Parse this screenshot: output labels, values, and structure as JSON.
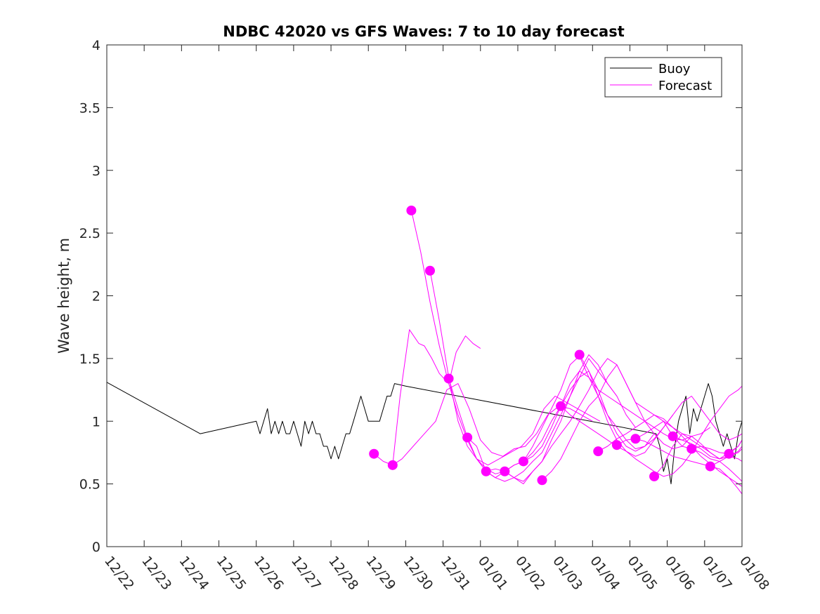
{
  "chart_data": {
    "type": "line",
    "title": "NDBC 42020 vs GFS Waves: 7 to 10 day forecast",
    "xlabel": "",
    "ylabel": "Wave height, m",
    "xlim": [
      0,
      17
    ],
    "ylim": [
      0,
      4
    ],
    "x_tick_labels": [
      "12/22",
      "12/23",
      "12/24",
      "12/25",
      "12/26",
      "12/27",
      "12/28",
      "12/29",
      "12/30",
      "12/31",
      "01/01",
      "01/02",
      "01/03",
      "01/04",
      "01/05",
      "01/06",
      "01/07",
      "01/08"
    ],
    "y_ticks": [
      0,
      0.5,
      1,
      1.5,
      2,
      2.5,
      3,
      3.5,
      4
    ],
    "y_tick_labels": [
      "0",
      "0.5",
      "1",
      "1.5",
      "2",
      "2.5",
      "3",
      "3.5",
      "4"
    ],
    "legend": {
      "placement": "top-right",
      "entries": [
        {
          "label": "Buoy",
          "color": "#000000"
        },
        {
          "label": "Forecast",
          "color": "#ff00ff"
        }
      ]
    },
    "series": [
      {
        "name": "Buoy",
        "color": "#000000",
        "x": [
          0,
          2.5,
          4.0,
          4.1,
          4.2,
          4.3,
          4.4,
          4.5,
          4.6,
          4.7,
          4.8,
          4.9,
          5.0,
          5.1,
          5.2,
          5.3,
          5.4,
          5.5,
          5.6,
          5.7,
          5.8,
          5.9,
          6.0,
          6.1,
          6.2,
          6.3,
          6.4,
          6.5,
          6.6,
          6.7,
          6.8,
          6.9,
          7.0,
          7.1,
          7.2,
          7.3,
          7.4,
          7.5,
          7.6,
          7.7,
          8.0,
          14.7,
          14.8,
          14.9,
          15.0,
          15.1,
          15.2,
          15.3,
          15.4,
          15.5,
          15.6,
          15.7,
          15.8,
          15.9,
          16.0,
          16.1,
          16.2,
          16.3,
          16.4,
          16.5,
          16.6,
          16.7,
          16.8,
          16.9,
          17.0
        ],
        "values": [
          1.31,
          0.9,
          1.0,
          0.9,
          1.0,
          1.1,
          0.9,
          1.0,
          0.9,
          1.0,
          0.9,
          0.9,
          1.0,
          0.9,
          0.8,
          1.0,
          0.9,
          1.0,
          0.9,
          0.9,
          0.8,
          0.8,
          0.7,
          0.8,
          0.7,
          0.8,
          0.9,
          0.9,
          1.0,
          1.1,
          1.2,
          1.1,
          1.0,
          1.0,
          1.0,
          1.0,
          1.1,
          1.2,
          1.2,
          1.3,
          1.28,
          0.9,
          0.8,
          0.6,
          0.7,
          0.5,
          0.8,
          1.0,
          1.1,
          1.2,
          0.9,
          1.1,
          1.0,
          1.1,
          1.2,
          1.3,
          1.2,
          1.0,
          0.9,
          0.8,
          0.9,
          0.8,
          0.7,
          0.9,
          1.0
        ]
      },
      {
        "name": "Forecast run 1",
        "color": "#ff00ff",
        "x": [
          7.15,
          7.4,
          7.65,
          7.85,
          8.1,
          8.35,
          8.5,
          8.7,
          8.9,
          9.15,
          9.35,
          9.6,
          9.8,
          10.0
        ],
        "values": [
          0.74,
          0.68,
          0.65,
          1.2,
          1.73,
          1.62,
          1.6,
          1.5,
          1.38,
          1.3,
          1.55,
          1.68,
          1.62,
          1.58
        ]
      },
      {
        "name": "Forecast run 2",
        "color": "#ff00ff",
        "x": [
          7.65,
          7.9,
          8.2,
          8.5,
          8.8,
          9.1,
          9.4,
          9.7,
          10.0,
          10.3,
          10.6,
          10.9,
          11.2,
          11.5,
          11.8,
          12.1,
          12.4,
          12.7,
          13.0
        ],
        "values": [
          0.65,
          0.7,
          0.8,
          0.9,
          1.0,
          1.25,
          1.3,
          1.1,
          0.85,
          0.75,
          0.72,
          0.78,
          0.8,
          0.9,
          1.05,
          1.12,
          1.1,
          1.05,
          1.0
        ]
      },
      {
        "name": "Forecast run 3",
        "color": "#ff00ff",
        "x": [
          8.15,
          8.4,
          8.65,
          8.9,
          9.15,
          9.4,
          9.65,
          9.9,
          10.2,
          10.5,
          10.8,
          11.1,
          11.4,
          11.7,
          12.0,
          12.3,
          12.6,
          12.9,
          13.2
        ],
        "values": [
          2.68,
          2.35,
          1.95,
          1.6,
          1.3,
          1.05,
          0.85,
          0.7,
          0.65,
          0.7,
          0.75,
          0.8,
          0.9,
          1.1,
          1.2,
          1.15,
          1.1,
          1.05,
          1.0
        ]
      },
      {
        "name": "Forecast run 4",
        "color": "#ff00ff",
        "x": [
          8.65,
          8.9,
          9.15,
          9.4,
          9.65,
          9.9,
          10.15,
          10.4,
          10.65,
          10.9,
          11.15,
          11.4,
          11.65,
          11.9,
          12.15,
          12.4,
          12.65,
          12.9,
          13.15,
          13.4,
          13.65
        ],
        "values": [
          2.2,
          1.8,
          1.35,
          1.0,
          0.8,
          0.7,
          0.62,
          0.58,
          0.6,
          0.55,
          0.5,
          0.6,
          0.68,
          0.85,
          1.0,
          1.2,
          1.4,
          1.53,
          1.45,
          1.3,
          1.2
        ]
      },
      {
        "name": "Forecast run 5",
        "color": "#ff00ff",
        "x": [
          9.15,
          9.4,
          9.65,
          9.9,
          10.15,
          10.4,
          10.65,
          10.9,
          11.15,
          11.4,
          11.65,
          11.9,
          12.15,
          12.4,
          12.65,
          12.9,
          13.15,
          13.4,
          13.65,
          13.9,
          14.15
        ],
        "values": [
          1.34,
          1.1,
          0.87,
          0.7,
          0.6,
          0.55,
          0.52,
          0.55,
          0.6,
          0.68,
          0.75,
          0.9,
          1.05,
          1.2,
          1.35,
          1.5,
          1.4,
          1.3,
          1.2,
          1.05,
          0.95
        ]
      },
      {
        "name": "Forecast run 6",
        "color": "#ff00ff",
        "x": [
          9.65,
          9.9,
          10.15,
          10.4,
          10.65,
          10.9,
          11.15,
          11.4,
          11.65,
          11.9,
          12.15,
          12.4,
          12.65,
          12.9,
          13.15,
          13.4,
          13.65,
          13.9,
          14.15,
          14.4,
          14.65
        ],
        "values": [
          0.87,
          0.8,
          0.6,
          0.55,
          0.6,
          0.65,
          0.68,
          0.8,
          0.95,
          1.1,
          1.25,
          1.45,
          1.52,
          1.35,
          1.2,
          1.05,
          0.95,
          0.85,
          0.78,
          0.8,
          0.9
        ]
      },
      {
        "name": "Forecast run 7",
        "color": "#ff00ff",
        "x": [
          10.15,
          10.4,
          10.65,
          10.9,
          11.15,
          11.4,
          11.65,
          11.9,
          12.15,
          12.4,
          12.65,
          12.9,
          13.15,
          13.4,
          13.65,
          13.9,
          14.15,
          14.4,
          14.65,
          14.9,
          15.15
        ],
        "values": [
          0.6,
          0.62,
          0.6,
          0.65,
          0.68,
          0.75,
          0.85,
          1.0,
          1.12,
          1.25,
          1.35,
          1.4,
          1.25,
          1.05,
          0.9,
          0.8,
          0.76,
          0.8,
          0.86,
          0.95,
          1.05
        ]
      },
      {
        "name": "Forecast run 8",
        "color": "#ff00ff",
        "x": [
          10.65,
          10.9,
          11.15,
          11.4,
          11.65,
          11.9,
          12.15,
          12.4,
          12.65,
          12.9,
          13.15,
          13.4,
          13.65,
          13.9,
          14.15,
          14.4,
          14.65,
          14.9,
          15.15,
          15.4,
          15.65
        ],
        "values": [
          0.6,
          0.55,
          0.52,
          0.6,
          0.68,
          0.8,
          0.9,
          1.0,
          1.12,
          1.25,
          1.4,
          1.5,
          1.45,
          1.3,
          1.15,
          1.0,
          0.9,
          0.82,
          0.78,
          0.8,
          0.88
        ]
      },
      {
        "name": "Forecast run 9",
        "color": "#ff00ff",
        "x": [
          11.15,
          11.4,
          11.65,
          11.9,
          12.15,
          12.4,
          12.65,
          12.9,
          13.15,
          13.4,
          13.65,
          13.9,
          14.15,
          14.4,
          14.65,
          14.9,
          15.15,
          15.4,
          15.65,
          15.9,
          16.15
        ],
        "values": [
          0.68,
          0.72,
          0.8,
          0.95,
          1.12,
          1.3,
          1.4,
          1.35,
          1.25,
          1.2,
          1.15,
          1.1,
          1.05,
          1.0,
          0.95,
          0.9,
          0.86,
          0.85,
          0.88,
          0.9,
          0.95
        ]
      },
      {
        "name": "Forecast run 10",
        "color": "#ff00ff",
        "x": [
          11.65,
          11.9,
          12.15,
          12.4,
          12.65,
          12.9,
          13.15,
          13.4,
          13.65,
          13.9,
          14.15,
          14.4,
          14.65,
          14.9,
          15.15,
          15.4,
          15.65,
          15.9,
          16.15,
          16.4,
          16.65
        ],
        "values": [
          0.53,
          0.6,
          0.7,
          0.85,
          1.0,
          1.12,
          1.2,
          1.35,
          1.45,
          1.3,
          1.15,
          1.1,
          1.05,
          1.0,
          0.95,
          0.9,
          0.85,
          0.8,
          0.78,
          0.75,
          0.74
        ]
      },
      {
        "name": "Forecast run 11",
        "color": "#ff00ff",
        "x": [
          12.15,
          12.4,
          12.65,
          12.9,
          13.15,
          13.4,
          13.65,
          13.9,
          14.15,
          14.4,
          14.65,
          14.9,
          15.15,
          15.4,
          15.65,
          15.9,
          16.15,
          16.4,
          16.65,
          16.9,
          17.0
        ],
        "values": [
          1.12,
          1.05,
          1.0,
          0.95,
          0.9,
          0.85,
          0.8,
          0.76,
          0.72,
          0.75,
          0.85,
          0.95,
          1.05,
          1.15,
          1.2,
          1.1,
          1.0,
          0.9,
          0.85,
          0.88,
          0.9
        ]
      },
      {
        "name": "Forecast run 12",
        "color": "#ff00ff",
        "x": [
          12.65,
          12.9,
          13.15,
          13.4,
          13.65,
          13.9,
          14.15,
          14.4,
          14.65,
          14.9,
          15.15,
          15.4,
          15.65,
          15.9,
          16.15,
          16.4,
          16.65,
          16.9,
          17.0
        ],
        "values": [
          1.53,
          1.4,
          1.2,
          1.0,
          0.85,
          0.76,
          0.7,
          0.65,
          0.6,
          0.56,
          0.58,
          0.65,
          0.75,
          0.88,
          1.0,
          1.1,
          1.2,
          1.25,
          1.28
        ]
      },
      {
        "name": "Forecast run 13",
        "color": "#ff00ff",
        "x": [
          13.15,
          13.4,
          13.65,
          13.9,
          14.15,
          14.4,
          14.65,
          14.9,
          15.15,
          15.4,
          15.65,
          15.9,
          16.15,
          16.4,
          16.65,
          16.9,
          17.0
        ],
        "values": [
          0.76,
          0.8,
          0.86,
          0.9,
          0.95,
          1.0,
          1.05,
          1.02,
          0.95,
          0.88,
          0.8,
          0.72,
          0.66,
          0.6,
          0.55,
          0.5,
          0.48
        ]
      },
      {
        "name": "Forecast run 14",
        "color": "#ff00ff",
        "x": [
          13.65,
          13.9,
          14.15,
          14.4,
          14.65,
          14.9,
          15.15,
          15.4,
          15.65,
          15.9,
          16.15,
          16.4,
          16.65,
          16.9,
          17.0
        ],
        "values": [
          0.81,
          0.85,
          0.86,
          0.9,
          0.95,
          1.0,
          0.88,
          0.8,
          0.78,
          0.75,
          0.7,
          0.68,
          0.62,
          0.55,
          0.52
        ]
      },
      {
        "name": "Forecast run 15",
        "color": "#ff00ff",
        "x": [
          14.15,
          14.4,
          14.65,
          14.9,
          15.15,
          15.4,
          15.65,
          15.9,
          16.15,
          16.4,
          16.65,
          16.9,
          17.0
        ],
        "values": [
          0.86,
          0.84,
          0.8,
          0.76,
          0.72,
          0.7,
          0.68,
          0.66,
          0.64,
          0.62,
          0.55,
          0.46,
          0.42
        ]
      },
      {
        "name": "Forecast run 16",
        "color": "#ff00ff",
        "x": [
          14.65,
          14.9,
          15.15,
          15.4,
          15.65,
          15.9,
          16.15,
          16.4,
          16.65,
          16.9,
          17.0
        ],
        "values": [
          0.56,
          0.65,
          0.8,
          0.9,
          0.88,
          0.82,
          0.75,
          0.7,
          0.72,
          0.7,
          0.68
        ]
      },
      {
        "name": "Forecast run 17",
        "color": "#ff00ff",
        "x": [
          15.15,
          15.4,
          15.65,
          15.9,
          16.15,
          16.4,
          16.65,
          16.9,
          17.0
        ],
        "values": [
          0.88,
          0.85,
          0.82,
          0.78,
          0.72,
          0.7,
          0.75,
          0.8,
          0.85
        ]
      },
      {
        "name": "Forecast run 18",
        "color": "#ff00ff",
        "x": [
          15.65,
          15.9,
          16.15,
          16.4,
          16.65,
          16.9,
          17.0
        ],
        "values": [
          0.78,
          0.8,
          0.75,
          0.7,
          0.72,
          0.76,
          0.8
        ]
      },
      {
        "name": "Forecast run 19",
        "color": "#ff00ff",
        "x": [
          16.15,
          16.4,
          16.65,
          16.9,
          17.0
        ],
        "values": [
          0.64,
          0.68,
          0.72,
          0.75,
          0.78
        ]
      },
      {
        "name": "Forecast run 20",
        "color": "#ff00ff",
        "x": [
          16.65,
          16.9,
          17.0
        ],
        "values": [
          0.74,
          0.8,
          0.85
        ]
      }
    ],
    "forecast_start_markers": {
      "x": [
        7.15,
        7.65,
        8.15,
        8.65,
        9.15,
        9.65,
        10.15,
        10.65,
        11.15,
        11.65,
        12.15,
        12.65,
        13.15,
        13.65,
        14.15,
        14.65,
        15.15,
        15.65,
        16.15,
        16.65
      ],
      "values": [
        0.74,
        0.65,
        2.68,
        2.2,
        1.34,
        0.87,
        0.6,
        0.6,
        0.68,
        0.53,
        1.12,
        1.53,
        0.76,
        0.81,
        0.86,
        0.56,
        0.88,
        0.78,
        0.64,
        0.74
      ]
    }
  }
}
